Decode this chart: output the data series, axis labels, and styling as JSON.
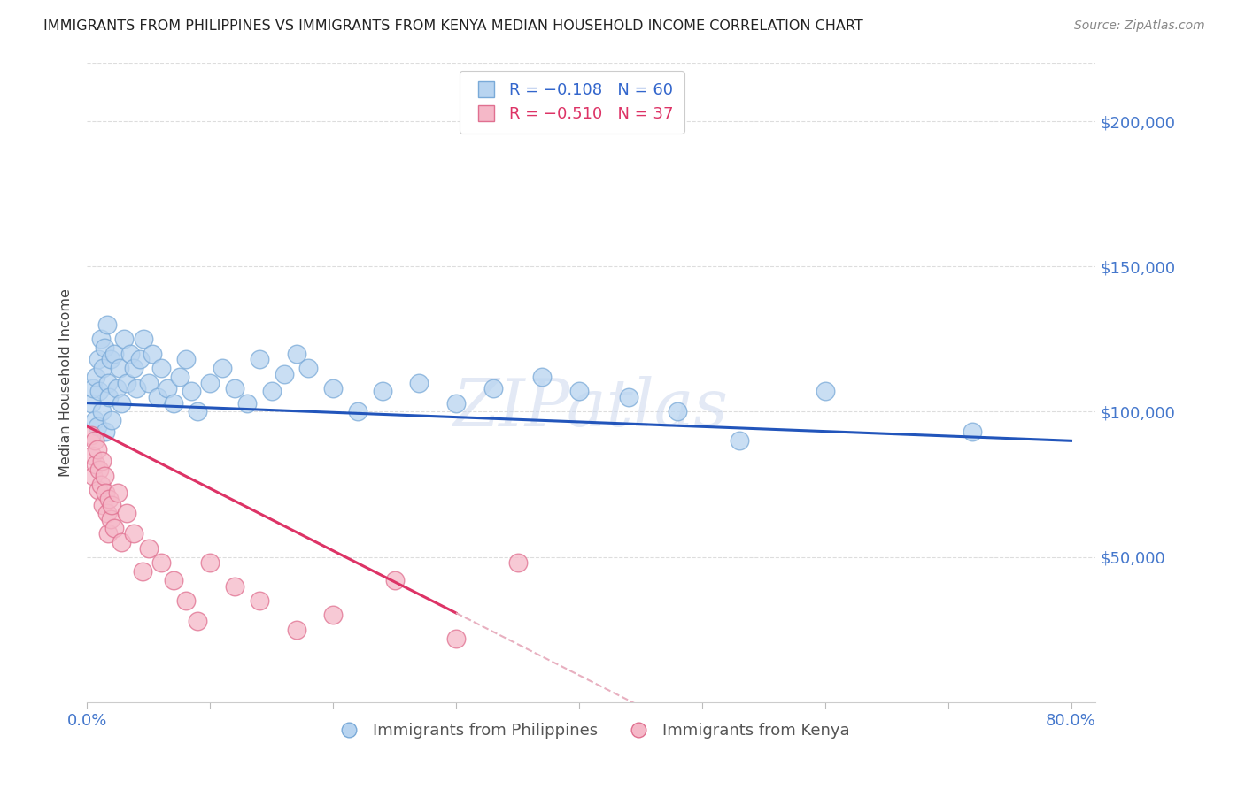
{
  "title": "IMMIGRANTS FROM PHILIPPINES VS IMMIGRANTS FROM KENYA MEDIAN HOUSEHOLD INCOME CORRELATION CHART",
  "source": "Source: ZipAtlas.com",
  "ylabel": "Median Household Income",
  "yticks": [
    0,
    50000,
    100000,
    150000,
    200000
  ],
  "ytick_labels": [
    "",
    "$50,000",
    "$100,000",
    "$150,000",
    "$200,000"
  ],
  "ylim": [
    0,
    220000
  ],
  "xlim": [
    0.0,
    0.82
  ],
  "philippines_color": "#b8d4f0",
  "philippines_edge": "#7aaad8",
  "kenya_color": "#f5b8c8",
  "kenya_edge": "#e07090",
  "regression_philippines_color": "#2255bb",
  "regression_kenya_color": "#dd3366",
  "regression_kenya_dashed_color": "#e8b0c0",
  "watermark": "ZIPatlas",
  "philippines_x": [
    0.003,
    0.005,
    0.006,
    0.007,
    0.008,
    0.009,
    0.01,
    0.011,
    0.012,
    0.013,
    0.014,
    0.015,
    0.016,
    0.017,
    0.018,
    0.019,
    0.02,
    0.022,
    0.024,
    0.026,
    0.028,
    0.03,
    0.032,
    0.035,
    0.038,
    0.04,
    0.043,
    0.046,
    0.05,
    0.053,
    0.057,
    0.06,
    0.065,
    0.07,
    0.075,
    0.08,
    0.085,
    0.09,
    0.1,
    0.11,
    0.12,
    0.13,
    0.14,
    0.15,
    0.16,
    0.17,
    0.18,
    0.2,
    0.22,
    0.24,
    0.27,
    0.3,
    0.33,
    0.37,
    0.4,
    0.44,
    0.48,
    0.53,
    0.6,
    0.72
  ],
  "philippines_y": [
    103000,
    108000,
    97000,
    112000,
    95000,
    118000,
    107000,
    125000,
    100000,
    115000,
    122000,
    93000,
    130000,
    110000,
    105000,
    118000,
    97000,
    120000,
    108000,
    115000,
    103000,
    125000,
    110000,
    120000,
    115000,
    108000,
    118000,
    125000,
    110000,
    120000,
    105000,
    115000,
    108000,
    103000,
    112000,
    118000,
    107000,
    100000,
    110000,
    115000,
    108000,
    103000,
    118000,
    107000,
    113000,
    120000,
    115000,
    108000,
    100000,
    107000,
    110000,
    103000,
    108000,
    112000,
    107000,
    105000,
    100000,
    90000,
    107000,
    93000
  ],
  "kenya_x": [
    0.003,
    0.004,
    0.005,
    0.006,
    0.007,
    0.008,
    0.009,
    0.01,
    0.011,
    0.012,
    0.013,
    0.014,
    0.015,
    0.016,
    0.017,
    0.018,
    0.019,
    0.02,
    0.022,
    0.025,
    0.028,
    0.032,
    0.038,
    0.045,
    0.05,
    0.06,
    0.07,
    0.08,
    0.09,
    0.1,
    0.12,
    0.14,
    0.17,
    0.2,
    0.25,
    0.3,
    0.35
  ],
  "kenya_y": [
    92000,
    85000,
    78000,
    90000,
    82000,
    87000,
    73000,
    80000,
    75000,
    83000,
    68000,
    78000,
    72000,
    65000,
    58000,
    70000,
    63000,
    68000,
    60000,
    72000,
    55000,
    65000,
    58000,
    45000,
    53000,
    48000,
    42000,
    35000,
    28000,
    48000,
    40000,
    35000,
    25000,
    30000,
    42000,
    22000,
    48000
  ]
}
